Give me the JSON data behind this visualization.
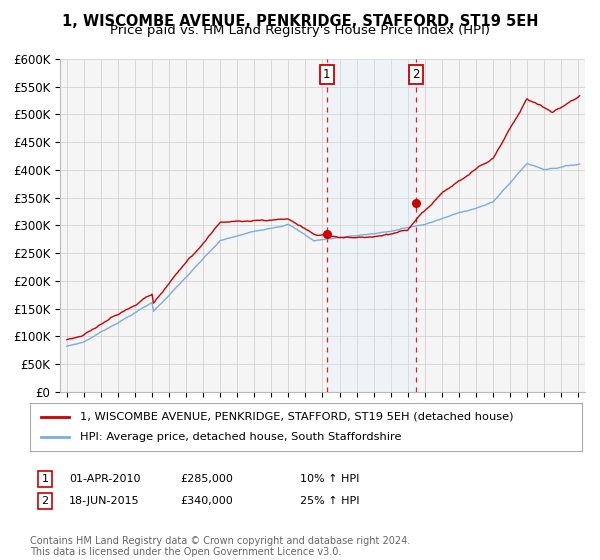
{
  "title": "1, WISCOMBE AVENUE, PENKRIDGE, STAFFORD, ST19 5EH",
  "subtitle": "Price paid vs. HM Land Registry's House Price Index (HPI)",
  "ylim": [
    0,
    600000
  ],
  "yticks": [
    0,
    50000,
    100000,
    150000,
    200000,
    250000,
    300000,
    350000,
    400000,
    450000,
    500000,
    550000,
    600000
  ],
  "ytick_labels": [
    "£0",
    "£50K",
    "£100K",
    "£150K",
    "£200K",
    "£250K",
    "£300K",
    "£350K",
    "£400K",
    "£450K",
    "£500K",
    "£550K",
    "£600K"
  ],
  "xlim_start": 1994.6,
  "xlim_end": 2025.4,
  "red_line_label": "1, WISCOMBE AVENUE, PENKRIDGE, STAFFORD, ST19 5EH (detached house)",
  "blue_line_label": "HPI: Average price, detached house, South Staffordshire",
  "sale1_x": 2010.25,
  "sale1_y": 285000,
  "sale1_label": "1",
  "sale1_date": "01-APR-2010",
  "sale1_price": "£285,000",
  "sale1_hpi": "10% ↑ HPI",
  "sale2_x": 2015.46,
  "sale2_y": 340000,
  "sale2_label": "2",
  "sale2_date": "18-JUN-2015",
  "sale2_price": "£340,000",
  "sale2_hpi": "25% ↑ HPI",
  "red_color": "#cc0000",
  "blue_color": "#7aade0",
  "shade_color": "#ddeeff",
  "marker_box_color": "#cc0000",
  "background_color": "#f5f5f5",
  "grid_color": "#cccccc",
  "footer_text": "Contains HM Land Registry data © Crown copyright and database right 2024.\nThis data is licensed under the Open Government Licence v3.0.",
  "title_fontsize": 10.5,
  "subtitle_fontsize": 9.5,
  "tick_fontsize": 8.5,
  "legend_fontsize": 8.5
}
